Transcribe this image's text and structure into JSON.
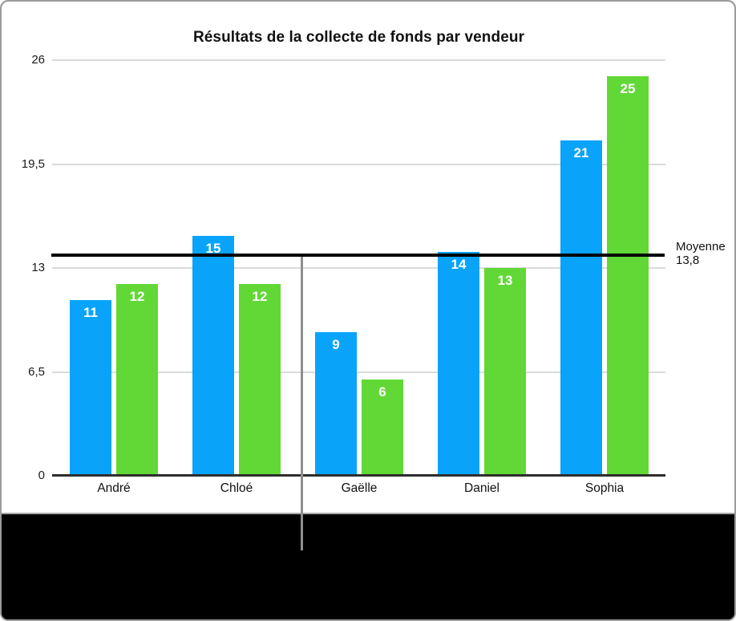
{
  "chart_data": {
    "type": "bar",
    "title": "Résultats de la collecte de fonds par vendeur",
    "categories": [
      "André",
      "Chloé",
      "Gaëlle",
      "Daniel",
      "Sophia"
    ],
    "series": [
      {
        "name": "series-1",
        "color": "#09a4f9",
        "values": [
          11,
          15,
          9,
          14,
          21
        ]
      },
      {
        "name": "series-2",
        "color": "#61d836",
        "values": [
          12,
          12,
          6,
          13,
          25
        ]
      }
    ],
    "value_labels": [
      "11",
      "15",
      "9",
      "14",
      "21",
      "12",
      "12",
      "6",
      "13",
      "25"
    ],
    "y_ticks": [
      {
        "value": 0,
        "label": "0"
      },
      {
        "value": 6.5,
        "label": "6,5"
      },
      {
        "value": 13,
        "label": "13"
      },
      {
        "value": 19.5,
        "label": "19,5"
      },
      {
        "value": 26,
        "label": "26"
      }
    ],
    "ylim": [
      0,
      26
    ],
    "xlabel": "",
    "ylabel": "",
    "grid": true,
    "legend": "none",
    "average_line": {
      "value": 13.8,
      "label_line1": "Moyenne",
      "label_line2": "13,8",
      "color": "#000000"
    }
  }
}
